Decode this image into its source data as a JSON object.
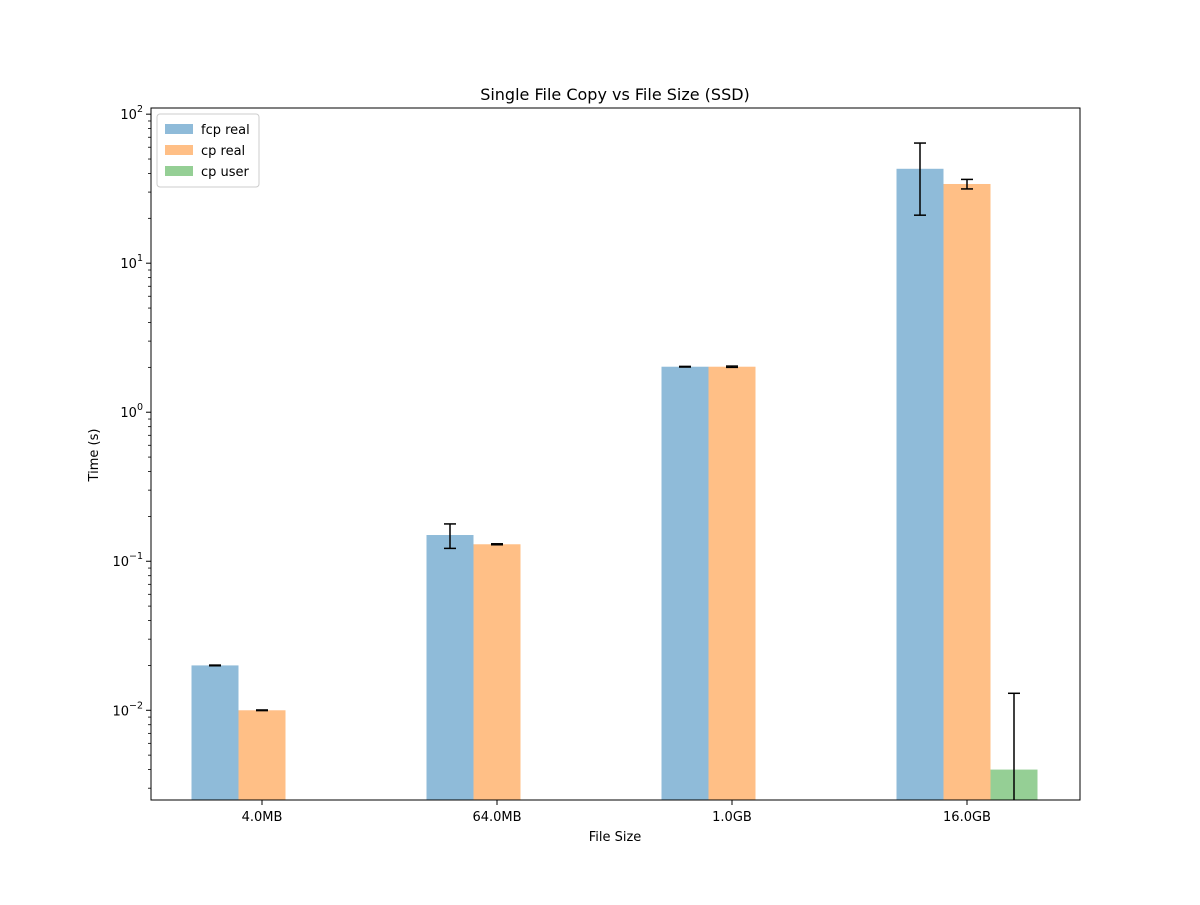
{
  "chart_data": {
    "type": "bar",
    "title": "Single File Copy vs File Size (SSD)",
    "xlabel": "File Size",
    "ylabel": "Time (s)",
    "yscale": "log",
    "ylim": [
      0.0025,
      110
    ],
    "y_major_ticks": [
      {
        "value": 0.01,
        "base": "10",
        "exp": "−2"
      },
      {
        "value": 0.1,
        "base": "10",
        "exp": "−1"
      },
      {
        "value": 1,
        "base": "10",
        "exp": "0"
      },
      {
        "value": 10,
        "base": "10",
        "exp": "1"
      },
      {
        "value": 100,
        "base": "10",
        "exp": "2"
      }
    ],
    "categories": [
      "4.0MB",
      "64.0MB",
      "1.0GB",
      "16.0GB"
    ],
    "legend_position": "upper-left",
    "grid": false,
    "series": [
      {
        "name": "fcp real",
        "color": "#1f77b4",
        "values": [
          0.02,
          0.15,
          2.02,
          43.0
        ],
        "err_low": [
          0.0199,
          0.122,
          2.01,
          21.0
        ],
        "err_high": [
          0.0201,
          0.178,
          2.03,
          64.0
        ]
      },
      {
        "name": "cp real",
        "color": "#ff7f0e",
        "values": [
          0.01,
          0.13,
          2.02,
          34.0
        ],
        "err_low": [
          0.00995,
          0.129,
          2.0,
          31.5
        ],
        "err_high": [
          0.01005,
          0.131,
          2.04,
          36.5
        ]
      },
      {
        "name": "cp user",
        "color": "#2ca02c",
        "values": [
          null,
          null,
          null,
          0.004
        ],
        "err_low": [
          null,
          null,
          null,
          0.0001
        ],
        "err_high": [
          null,
          null,
          null,
          0.013
        ]
      }
    ]
  }
}
